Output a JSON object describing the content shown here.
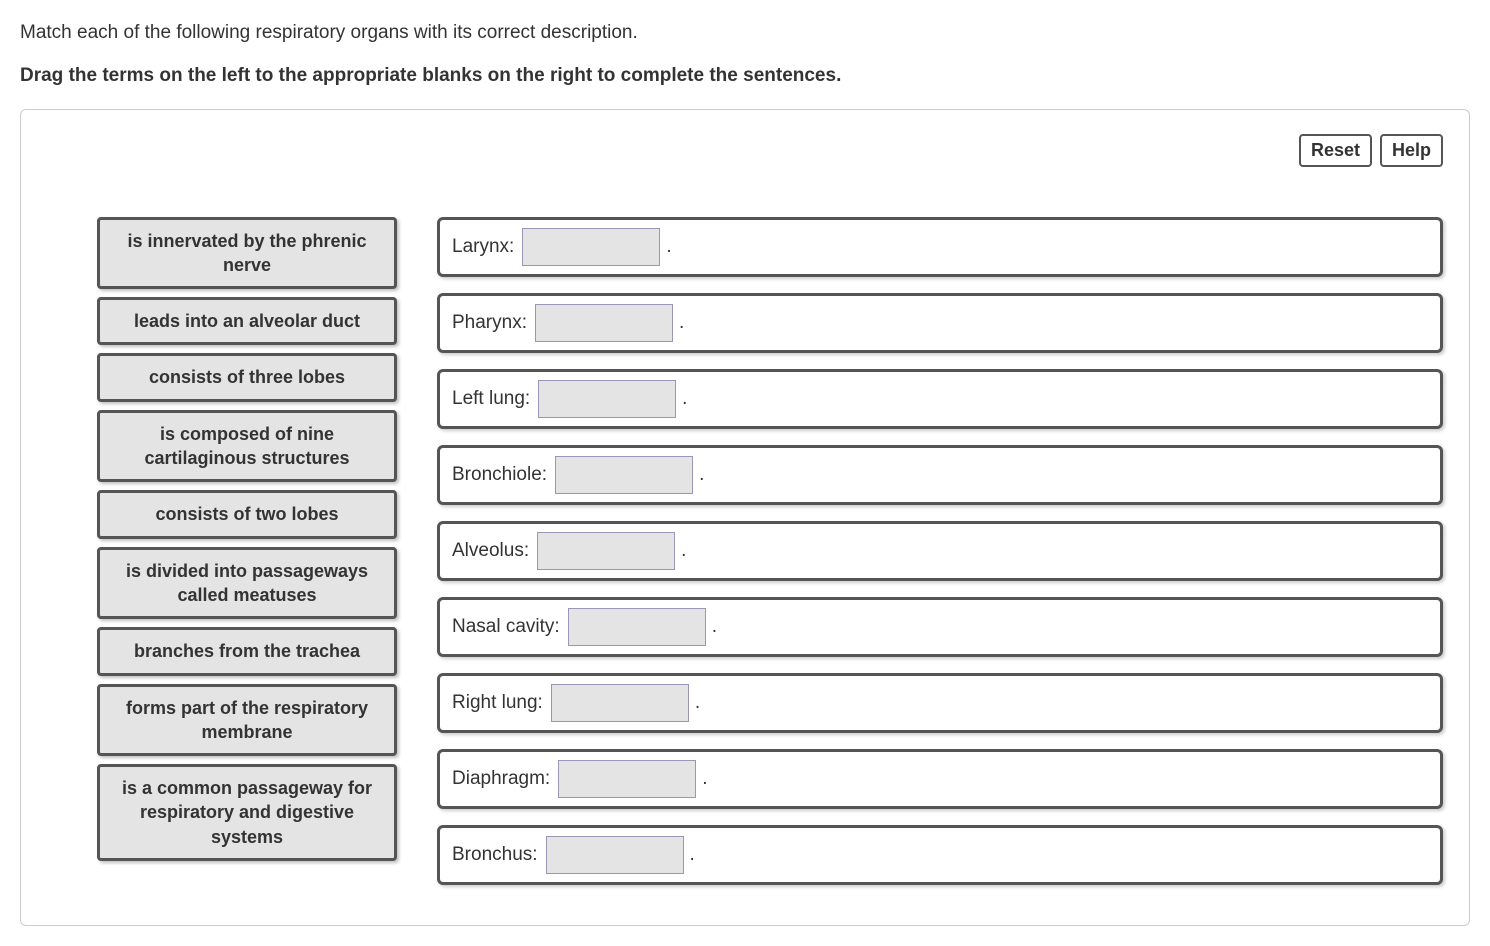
{
  "prompt": "Match each of the following respiratory organs with its correct description.",
  "instruction": "Drag the terms on the left to the appropriate blanks on the right to complete the sentences.",
  "buttons": {
    "reset": "Reset",
    "help": "Help"
  },
  "terms": [
    "is innervated by the phrenic nerve",
    "leads into an alveolar duct",
    "consists of three lobes",
    "is composed of nine cartilaginous structures",
    "consists of two lobes",
    "is divided into passageways called meatuses",
    "branches from the trachea",
    "forms part of the respiratory membrane",
    "is a common passageway for respiratory and digestive systems"
  ],
  "targets": [
    {
      "label": "Larynx:"
    },
    {
      "label": "Pharynx:"
    },
    {
      "label": "Left lung:"
    },
    {
      "label": "Bronchiole:"
    },
    {
      "label": "Alveolus:"
    },
    {
      "label": "Nasal cavity:"
    },
    {
      "label": "Right lung:"
    },
    {
      "label": "Diaphragm:"
    },
    {
      "label": "Bronchus:"
    }
  ],
  "period": ".",
  "colors": {
    "card_bg": "#e4e4e4",
    "border": "#555555",
    "slot_border": "#9a96b8",
    "text": "#333333",
    "panel_border": "#cccccc",
    "page_bg": "#ffffff"
  }
}
